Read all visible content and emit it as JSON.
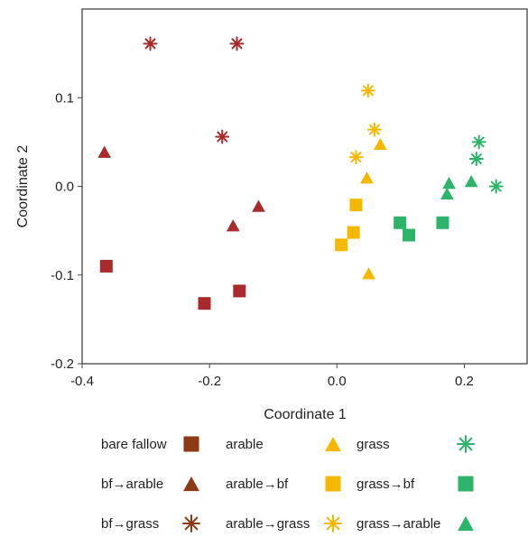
{
  "chart_data": {
    "type": "scatter",
    "xlabel": "Coordinate 1",
    "ylabel": "Coordinate 2",
    "xlim": [
      -0.4,
      0.3
    ],
    "ylim": [
      -0.2,
      0.2
    ],
    "xticks": [
      -0.4,
      -0.2,
      0.0,
      0.2
    ],
    "xtick_labels": [
      "-0.4",
      "-0.2",
      "0.0",
      "0.2"
    ],
    "yticks": [
      -0.2,
      -0.1,
      0.0,
      0.1
    ],
    "ytick_labels": [
      "-0.2",
      "-0.1",
      "0.0",
      "0.1"
    ],
    "grid": false,
    "legend_position": "bottom",
    "series": [
      {
        "name": "bare fallow",
        "marker": "square",
        "color": "#a82a2a",
        "legend_color": "#8b3a14",
        "points": []
      },
      {
        "name": "bf→arable",
        "marker": "triangle",
        "color": "#a82a2a",
        "legend_color": "#8b3a14",
        "points": [
          [
            -0.365,
            0.039
          ],
          [
            -0.163,
            -0.044
          ],
          [
            -0.123,
            -0.022
          ]
        ]
      },
      {
        "name": "bf→grass",
        "marker": "asterisk",
        "color": "#a82a2a",
        "legend_color": "#8b3a14",
        "points": [
          [
            -0.293,
            0.161
          ],
          [
            -0.157,
            0.161
          ],
          [
            -0.18,
            0.056
          ]
        ]
      },
      {
        "name": "arable",
        "marker": "triangle",
        "color": "#f5b800",
        "legend_color": "#f5b800",
        "points": []
      },
      {
        "name": "arable→bf",
        "marker": "square",
        "color": "#f5b800",
        "legend_color": "#f5b800",
        "points": [
          [
            0.03,
            -0.021
          ],
          [
            0.026,
            -0.052
          ],
          [
            0.007,
            -0.066
          ]
        ]
      },
      {
        "name": "arable→grass",
        "marker": "asterisk",
        "color": "#f5b800",
        "legend_color": "#f5b800",
        "points": [
          [
            0.049,
            0.108
          ],
          [
            0.059,
            0.064
          ],
          [
            0.03,
            0.033
          ]
        ]
      },
      {
        "name": "grass",
        "marker": "asterisk",
        "color": "#2db36a",
        "legend_color": "#2db36a",
        "points": []
      },
      {
        "name": "grass→bf",
        "marker": "square",
        "color": "#2db36a",
        "legend_color": "#2db36a",
        "points": [
          [
            0.099,
            -0.041
          ],
          [
            0.113,
            -0.055
          ],
          [
            0.166,
            -0.041
          ]
        ]
      },
      {
        "name": "grass→arable",
        "marker": "triangle",
        "color": "#2db36a",
        "legend_color": "#2db36a",
        "points": [
          [
            0.176,
            0.004
          ],
          [
            0.173,
            -0.008
          ],
          [
            0.211,
            0.006
          ]
        ]
      }
    ],
    "extra_points": [
      {
        "series": "bare fallow",
        "points": [
          [
            -0.362,
            -0.09
          ],
          [
            -0.208,
            -0.132
          ],
          [
            -0.153,
            -0.118
          ]
        ]
      },
      {
        "series": "arable",
        "points": [
          [
            0.068,
            0.048
          ],
          [
            0.047,
            0.01
          ],
          [
            0.05,
            -0.098
          ]
        ]
      },
      {
        "series": "grass",
        "points": [
          [
            0.223,
            0.05
          ],
          [
            0.219,
            0.031
          ],
          [
            0.25,
            0.0
          ]
        ]
      }
    ],
    "legend": [
      {
        "label": "bare fallow",
        "marker": "square",
        "color": "#8b3a14"
      },
      {
        "label": "arable",
        "marker": "triangle",
        "color": "#f5b800"
      },
      {
        "label": "grass",
        "marker": "asterisk",
        "color": "#2db36a"
      },
      {
        "label": "bf→arable",
        "marker": "triangle",
        "color": "#8b3a14"
      },
      {
        "label": "arable→bf",
        "marker": "square",
        "color": "#f5b800"
      },
      {
        "label": "grass→bf",
        "marker": "square",
        "color": "#2db36a"
      },
      {
        "label": "bf→grass",
        "marker": "asterisk",
        "color": "#8b3a14"
      },
      {
        "label": "arable→grass",
        "marker": "asterisk",
        "color": "#f5b800"
      },
      {
        "label": "grass→arable",
        "marker": "triangle",
        "color": "#2db36a"
      }
    ]
  }
}
